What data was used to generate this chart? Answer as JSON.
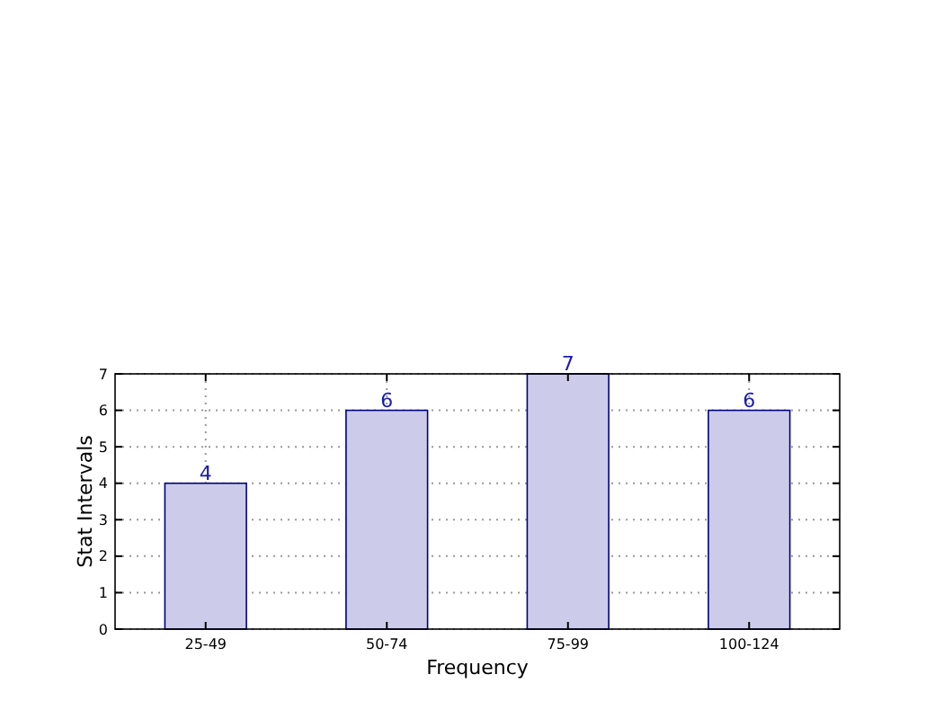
{
  "chart_data": {
    "type": "bar",
    "xlabel": "Frequency",
    "ylabel": "Stat Intervals",
    "categories": [
      "25-49",
      "50-74",
      "75-99",
      "100-124"
    ],
    "values": [
      4,
      6,
      7,
      6
    ],
    "color": "#ccccea",
    "ylim": [
      0,
      7
    ],
    "yticks": [
      0,
      1,
      2,
      3,
      4,
      5,
      6,
      7
    ],
    "grid": true,
    "data_labels": true
  }
}
